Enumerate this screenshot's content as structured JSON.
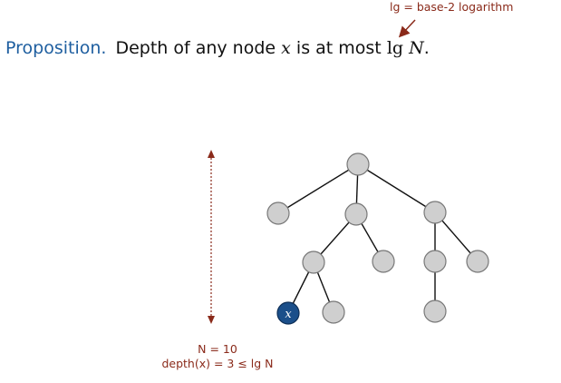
{
  "annotation": {
    "text": "lg = base-2 logarithm"
  },
  "proposition": {
    "label": "Proposition.",
    "text_before": "Depth of any node",
    "var_x": "x",
    "text_middle": "is at most",
    "lg": "lg",
    "var_n": "N",
    "period": "."
  },
  "tree": {
    "highlight_label": "x",
    "colors": {
      "node_fill": "#cfcfcf",
      "node_stroke": "#777777",
      "highlight_fill": "#1b4f8a",
      "highlight_text": "#ffffff",
      "edge": "#111111",
      "depth_arrow": "#8a2a1a"
    }
  },
  "caption": {
    "n_line": "N = 10",
    "depth_line": "depth(x) = 3 ≤  lg N"
  }
}
